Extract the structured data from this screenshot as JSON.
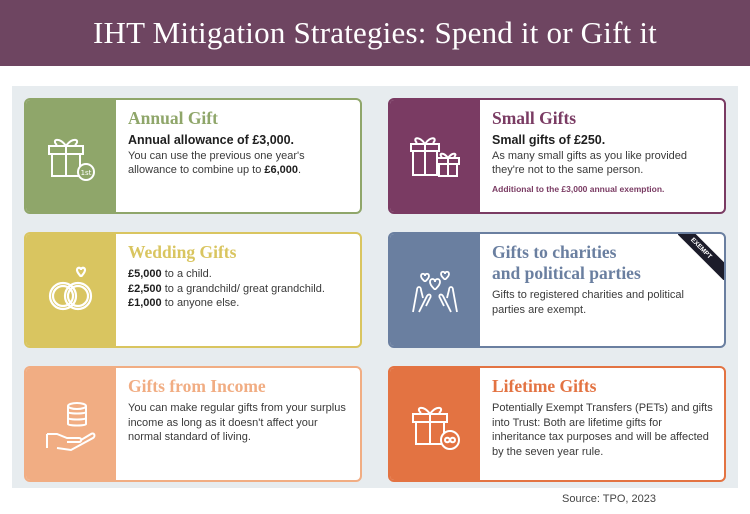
{
  "header": {
    "title": "IHT Mitigation Strategies: Spend it or Gift it"
  },
  "cards": {
    "annual": {
      "title": "Annual Gift",
      "lead": "Annual allowance of £3,000.",
      "text_pre": "You can use the previous one year's allowance to combine up to ",
      "text_bold": "£6,000",
      "text_post": ".",
      "icon": "gift-calendar-icon",
      "icon_text": "1st",
      "color": "#8fa66a"
    },
    "small": {
      "title": "Small Gifts",
      "lead": "Small gifts of £250.",
      "text": "As many small gifts as you like provided they're not to the same person.",
      "note": "Additional to the £3,000 annual exemption.",
      "icon": "two-gifts-icon",
      "color": "#7a3b63"
    },
    "wedding": {
      "title": "Wedding Gifts",
      "lines": [
        {
          "bold": "£5,000",
          "rest": " to a child."
        },
        {
          "bold": "£2,500",
          "rest": " to a grandchild/ great grandchild."
        },
        {
          "bold": "£1,000",
          "rest": " to anyone else."
        }
      ],
      "icon": "wedding-rings-icon",
      "color": "#d9c560"
    },
    "charity": {
      "title_line1": "Gifts to charities",
      "title_line2": "and political parties",
      "text": "Gifts to registered charities and political parties are exempt.",
      "badge": "EXEMPT",
      "icon": "hands-hearts-icon",
      "color": "#6a7fa0"
    },
    "income": {
      "title": "Gifts from Income",
      "text": "You can make regular gifts from your surplus income as long as it doesn't affect your normal standard of living.",
      "icon": "hand-coins-icon",
      "color": "#f1ad83"
    },
    "lifetime": {
      "title": "Lifetime Gifts",
      "text": "Potentially Exempt Transfers (PETs) and gifts into Trust: Both are lifetime gifts for inheritance tax purposes and will be affected by the seven year rule.",
      "icon": "gift-infinity-icon",
      "color": "#e37342"
    }
  },
  "footer": {
    "source": "Source: TPO, 2023"
  }
}
